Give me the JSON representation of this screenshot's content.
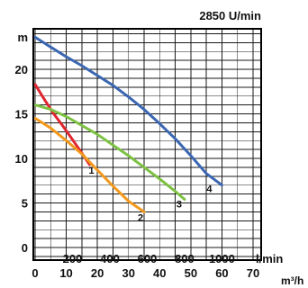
{
  "chart_data": {
    "type": "line",
    "speed_label": "2850 U/min",
    "y_unit": "m",
    "x_unit_bottom": "m³/h",
    "x_unit_top": "l/min",
    "ylim": [
      -1,
      25
    ],
    "xlim": [
      0,
      65
    ],
    "y_ticks": [
      0,
      5,
      10,
      15,
      20
    ],
    "x_ticks": [
      0,
      10,
      20,
      30,
      40,
      50,
      60,
      70
    ],
    "x_ticks_top": [
      200,
      400,
      600,
      800,
      1000
    ],
    "grid": true,
    "series": [
      {
        "name": "1",
        "color": "#e0262f",
        "x": [
          0,
          3,
          6,
          9,
          12,
          15,
          17.5
        ],
        "y": [
          18.3,
          16.6,
          15.0,
          13.6,
          12.1,
          10.6,
          9.3
        ]
      },
      {
        "name": "2",
        "color": "#f39a1e",
        "x": [
          0,
          5,
          10,
          15,
          20,
          25,
          30,
          35
        ],
        "y": [
          14.5,
          13.4,
          12.0,
          10.5,
          8.7,
          6.9,
          5.2,
          4.0
        ]
      },
      {
        "name": "3",
        "color": "#7dc242",
        "x": [
          0,
          5,
          10,
          15,
          20,
          25,
          30,
          35,
          40,
          45,
          48
        ],
        "y": [
          16.0,
          15.5,
          14.7,
          13.7,
          12.7,
          11.5,
          10.3,
          9.0,
          7.7,
          6.3,
          5.4
        ]
      },
      {
        "name": "4",
        "color": "#3b67b2",
        "x": [
          0,
          5,
          10,
          15,
          20,
          25,
          30,
          35,
          40,
          45,
          50,
          55,
          60
        ],
        "y": [
          23.6,
          22.5,
          21.4,
          20.4,
          19.3,
          18.2,
          16.9,
          15.5,
          13.9,
          12.2,
          10.3,
          8.3,
          7.0
        ]
      }
    ]
  }
}
